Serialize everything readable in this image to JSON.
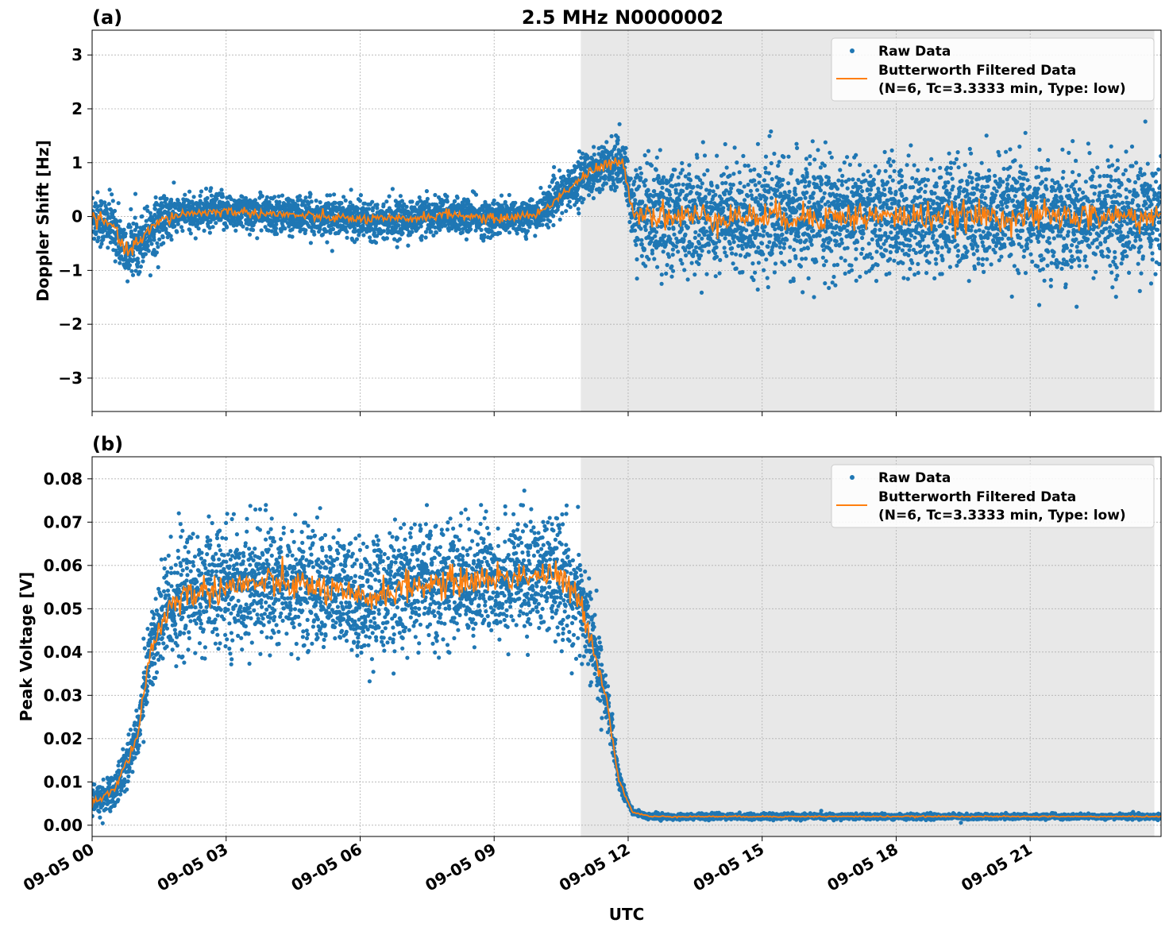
{
  "chart_data": [
    {
      "type": "scatter",
      "panel_label": "(a)",
      "title": "2.5 MHz N0000002",
      "xlabel": "",
      "ylabel": "Doppler Shift [Hz]",
      "xlim_hours": [
        0,
        23.93
      ],
      "ylim": [
        -3.62,
        3.46
      ],
      "yticks": [
        -3,
        -2,
        -1,
        0,
        1,
        2,
        3
      ],
      "ytick_labels": [
        "−3",
        "−2",
        "−1",
        "0",
        "1",
        "2",
        "3"
      ],
      "grid": true,
      "legend_placement": "top-right",
      "shaded_interval_hours": [
        10.94,
        23.78
      ],
      "series": [
        {
          "name": "Raw Data",
          "kind": "scatter",
          "color": "#1f77b4",
          "center_hours": [
            0,
            0.5,
            0.75,
            1,
            1.5,
            2,
            3,
            4,
            5,
            6,
            7,
            8,
            9,
            9.5,
            10,
            10.5,
            11,
            11.5,
            11.9,
            12.1,
            13,
            24
          ],
          "center_values": [
            0,
            -0.2,
            -0.7,
            -0.5,
            -0.1,
            0.05,
            0.1,
            0.05,
            0,
            -0.05,
            -0.05,
            0.05,
            -0.05,
            0,
            0.05,
            0.4,
            0.75,
            0.95,
            1.0,
            0.1,
            0,
            0
          ],
          "spread_hours": [
            0,
            1.5,
            2,
            10.5,
            11,
            12,
            12.3,
            24
          ],
          "spread_values": [
            0.45,
            0.45,
            0.3,
            0.3,
            0.4,
            0.4,
            0.9,
            0.9
          ]
        },
        {
          "name": "Butterworth Filtered Data",
          "name_line2": "(N=6, Tc=3.3333 min, Type: low)",
          "kind": "line",
          "color": "#ff7f0e",
          "hours": [
            0,
            0.5,
            0.75,
            1,
            1.5,
            2,
            3,
            4,
            5,
            6,
            7,
            8,
            9,
            9.5,
            10,
            10.5,
            11,
            11.5,
            11.9,
            12.1,
            13,
            24
          ],
          "values": [
            0,
            -0.2,
            -0.7,
            -0.5,
            -0.1,
            0.05,
            0.1,
            0.05,
            0,
            -0.05,
            -0.05,
            0.05,
            -0.05,
            0,
            0.05,
            0.4,
            0.75,
            0.95,
            1.0,
            0.1,
            0,
            0
          ]
        }
      ]
    },
    {
      "type": "scatter",
      "panel_label": "(b)",
      "title": "",
      "xlabel": "UTC",
      "ylabel": "Peak Voltage [V]",
      "xlim_hours": [
        0,
        23.93
      ],
      "ylim": [
        -0.0026,
        0.0851
      ],
      "yticks": [
        0,
        0.01,
        0.02,
        0.03,
        0.04,
        0.05,
        0.06,
        0.07,
        0.08
      ],
      "ytick_labels": [
        "0.00",
        "0.01",
        "0.02",
        "0.03",
        "0.04",
        "0.05",
        "0.06",
        "0.07",
        "0.08"
      ],
      "xticks_hours": [
        0,
        3,
        6,
        9,
        12,
        15,
        18,
        21
      ],
      "xtick_labels": [
        "09-05 00",
        "09-05 03",
        "09-05 06",
        "09-05 09",
        "09-05 12",
        "09-05 15",
        "09-05 18",
        "09-05 21"
      ],
      "grid": true,
      "legend_placement": "top-right",
      "shaded_interval_hours": [
        10.94,
        23.78
      ],
      "series": [
        {
          "name": "Raw Data",
          "kind": "scatter",
          "color": "#1f77b4",
          "center_hours": [
            0,
            0.5,
            1,
            1.3,
            1.7,
            2,
            3,
            4,
            5,
            6,
            7,
            8,
            9,
            10,
            10.5,
            11,
            11.5,
            11.8,
            12.1,
            12.5,
            24
          ],
          "center_values": [
            0.005,
            0.008,
            0.02,
            0.04,
            0.05,
            0.053,
            0.055,
            0.056,
            0.055,
            0.052,
            0.055,
            0.056,
            0.057,
            0.058,
            0.057,
            0.05,
            0.03,
            0.01,
            0.003,
            0.002,
            0.002
          ],
          "spread_hours": [
            0,
            1,
            1.5,
            11,
            11.5,
            12,
            24
          ],
          "spread_values": [
            0.003,
            0.005,
            0.012,
            0.012,
            0.005,
            0.0006,
            0.0005
          ]
        },
        {
          "name": "Butterworth Filtered Data",
          "name_line2": "(N=6, Tc=3.3333 min, Type: low)",
          "kind": "line",
          "color": "#ff7f0e",
          "hours": [
            0,
            0.5,
            1,
            1.3,
            1.7,
            2,
            3,
            4,
            5,
            6,
            7,
            8,
            9,
            10,
            10.5,
            11,
            11.5,
            11.8,
            12.1,
            12.5,
            24
          ],
          "values": [
            0.005,
            0.008,
            0.02,
            0.04,
            0.05,
            0.053,
            0.055,
            0.056,
            0.055,
            0.052,
            0.055,
            0.056,
            0.057,
            0.058,
            0.057,
            0.05,
            0.03,
            0.01,
            0.003,
            0.002,
            0.002
          ]
        }
      ]
    }
  ]
}
